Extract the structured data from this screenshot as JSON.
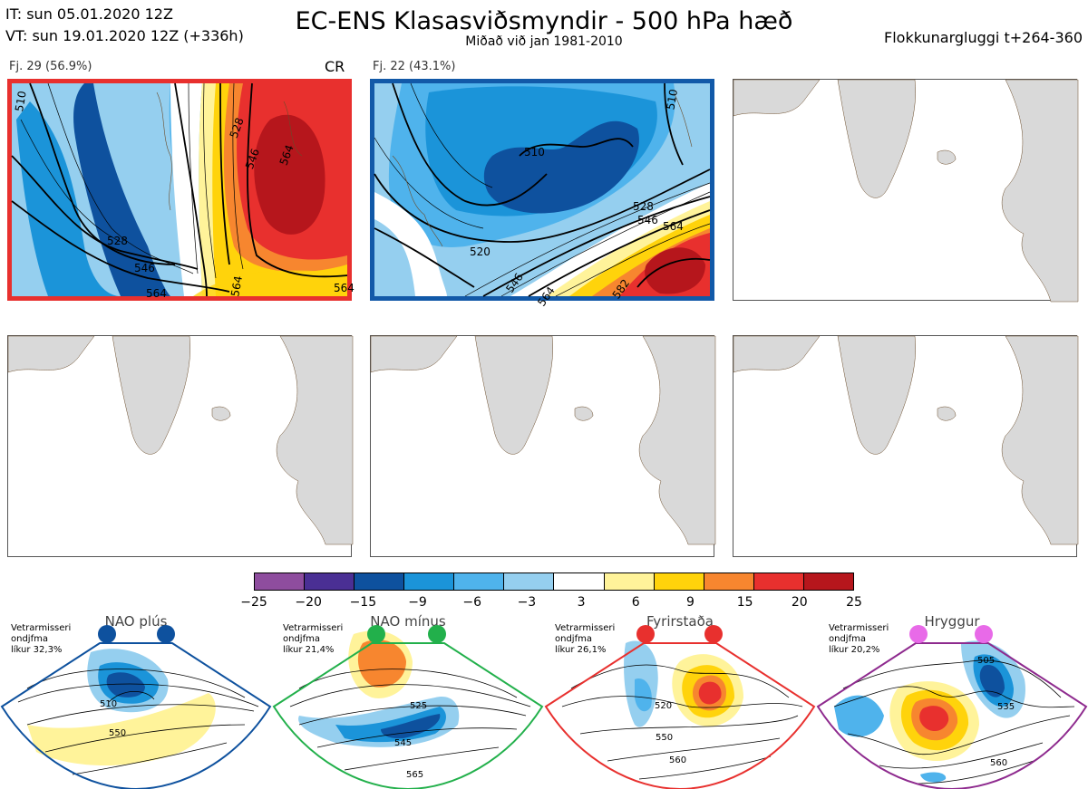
{
  "header": {
    "it_line": "IT: sun 05.01.2020 12Z",
    "vt_line": "VT: sun 19.01.2020 12Z  (+336h)",
    "title": "EC-ENS Klasasviðsmyndir - 500 hPa hæð",
    "subtitle": "Miðað við jan 1981-2010",
    "window": "Flokkunargluggi t+264-360"
  },
  "panels": [
    {
      "label": "Fj. 29 (56.9%)",
      "tag": "CR",
      "border_color": "#e8302e",
      "contours": [
        "510",
        "528",
        "546",
        "564",
        "528",
        "546",
        "564",
        "564",
        "564"
      ]
    },
    {
      "label": "Fj. 22 (43.1%)",
      "tag": "",
      "border_color": "#1259a8",
      "contours": [
        "510",
        "510",
        "528",
        "546",
        "564",
        "520",
        "546",
        "564",
        "582"
      ]
    }
  ],
  "colorbar": {
    "ticks": [
      "−25",
      "−20",
      "−15",
      "−9",
      "−6",
      "−3",
      "3",
      "6",
      "9",
      "15",
      "20",
      "25"
    ],
    "colors": [
      "#8e4d9e",
      "#4a2f94",
      "#0e519e",
      "#1b94d9",
      "#4fb3ec",
      "#95cfef",
      "#ffffff",
      "#fff39a",
      "#ffd30b",
      "#f7862f",
      "#e8302e",
      "#b6161c"
    ]
  },
  "regimes": [
    {
      "name": "NAO plús",
      "info": [
        "Vetrarmisseri",
        "ondjfma",
        "líkur 32,3%"
      ],
      "dot_color": "#0e519e",
      "border_color": "#0e519e",
      "contour_labels": [
        "510",
        "550"
      ]
    },
    {
      "name": "NAO mínus",
      "info": [
        "Vetrarmisseri",
        "ondjfma",
        "líkur 21,4%"
      ],
      "dot_color": "#22b04b",
      "border_color": "#22b04b",
      "contour_labels": [
        "525",
        "545",
        "565"
      ]
    },
    {
      "name": "Fyrirstaða",
      "info": [
        "Vetrarmisseri",
        "ondjfma",
        "líkur 26,1%"
      ],
      "dot_color": "#e8302e",
      "border_color": "#e8302e",
      "contour_labels": [
        "520",
        "550",
        "560"
      ]
    },
    {
      "name": "Hryggur",
      "info": [
        "Vetrarmisseri",
        "ondjfma",
        "líkur 20,2%"
      ],
      "dot_color": "#e86ae8",
      "border_color": "#8e2a8e",
      "contour_labels": [
        "505",
        "535",
        "560"
      ]
    }
  ]
}
